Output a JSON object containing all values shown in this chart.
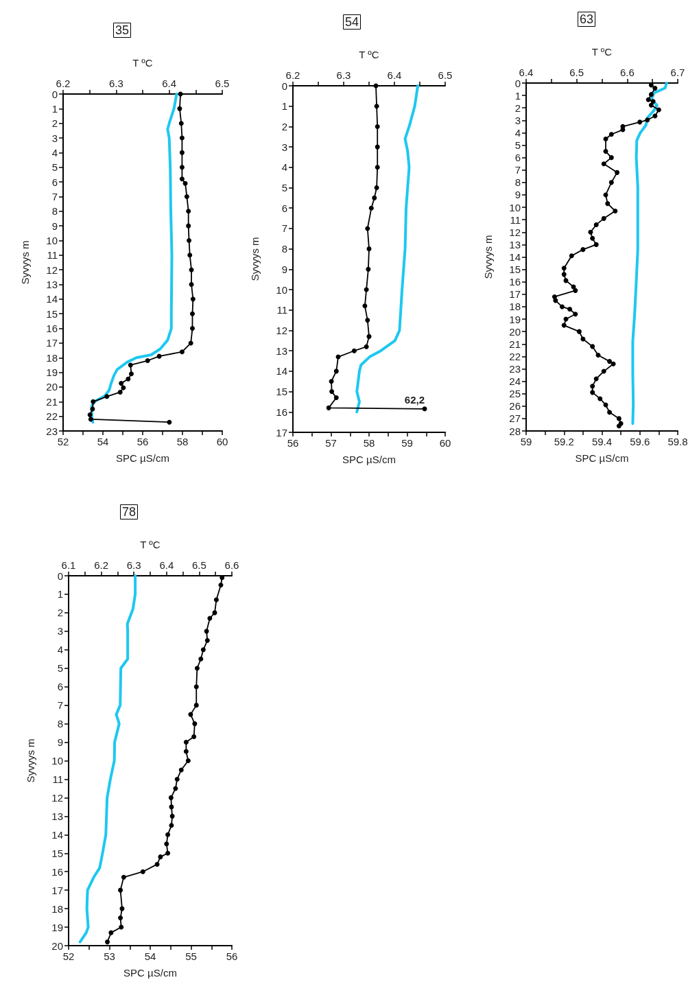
{
  "chart_data": [
    {
      "type": "line",
      "title": "35",
      "xlabel": "SPC µS/cm",
      "x2label": "T ºC",
      "ylabel": "Syvyys m",
      "ylim": [
        23,
        0
      ],
      "yticks": [
        0,
        1,
        2,
        3,
        4,
        5,
        6,
        7,
        8,
        9,
        10,
        11,
        12,
        13,
        14,
        15,
        16,
        17,
        18,
        19,
        20,
        21,
        22,
        23
      ],
      "xlim": [
        52,
        60
      ],
      "xticks": [
        52,
        {
          "value": 53,
          "label": null
        },
        54,
        {
          "value": 55,
          "label": null
        },
        56,
        {
          "value": 57,
          "label": null
        },
        58,
        {
          "value": 59,
          "label": null
        },
        60
      ],
      "x2lim": [
        6.2,
        6.5
      ],
      "x2ticks": [
        6.2,
        {
          "value": 6.25,
          "label": null
        },
        6.3,
        {
          "value": 6.35,
          "label": null
        },
        6.4,
        {
          "value": 6.45,
          "label": null
        },
        6.5
      ],
      "series": [
        {
          "color": "#1ec8f0",
          "axis": "x2",
          "marker": "none",
          "x": [
            6.414,
            6.409,
            6.4,
            6.397,
            6.4,
            6.402,
            6.403,
            6.405,
            6.404,
            6.404,
            6.397,
            6.383,
            6.366,
            6.338,
            6.321,
            6.302,
            6.296,
            6.29,
            6.287,
            6.279,
            6.259,
            6.254,
            6.254,
            6.256
          ],
          "values": [
            0,
            1,
            2,
            2.4,
            3,
            5,
            8,
            11,
            15,
            16,
            16.8,
            17.4,
            17.8,
            18,
            18.3,
            18.8,
            19.2,
            19.8,
            20.2,
            20.6,
            21,
            21.3,
            22,
            22.4
          ]
        },
        {
          "color": "#000000",
          "marker": "circle",
          "x": [
            57.9,
            57.86,
            57.94,
            57.98,
            57.98,
            57.98,
            57.98,
            58.14,
            58.22,
            58.3,
            58.3,
            58.33,
            58.37,
            58.45,
            58.45,
            58.53,
            58.5,
            58.5,
            58.42,
            57.98,
            56.83,
            56.25,
            55.39,
            55.43,
            55.27,
            54.92,
            55.03,
            54.87,
            54.2,
            53.51,
            53.48,
            53.35,
            53.39,
            57.34
          ],
          "values": [
            0,
            1,
            2,
            3,
            4,
            5,
            5.8,
            6.1,
            7,
            8,
            9,
            10,
            11,
            12,
            13,
            14,
            15,
            16,
            17,
            17.6,
            17.9,
            18.2,
            18.5,
            19.1,
            19.45,
            19.75,
            20.05,
            20.35,
            20.65,
            21,
            21.5,
            21.9,
            22.2,
            22.4
          ]
        }
      ]
    },
    {
      "type": "line",
      "title": "54",
      "xlabel": "SPC µS/cm",
      "x2label": "T ºC",
      "ylabel": "Syvyys m",
      "ylim": [
        17,
        0
      ],
      "yticks": [
        0,
        1,
        2,
        3,
        4,
        5,
        6,
        7,
        8,
        9,
        10,
        11,
        12,
        13,
        14,
        15,
        16,
        17
      ],
      "xlim": [
        56,
        60
      ],
      "xticks": [
        56,
        {
          "value": 56.5,
          "label": null
        },
        57,
        {
          "value": 57.5,
          "label": null
        },
        58,
        {
          "value": 58.5,
          "label": null
        },
        59,
        {
          "value": 59.5,
          "label": null
        },
        60
      ],
      "x2lim": [
        6.2,
        6.5
      ],
      "x2ticks": [
        6.2,
        {
          "value": 6.25,
          "label": null
        },
        6.3,
        {
          "value": 6.35,
          "label": null
        },
        6.4,
        {
          "value": 6.45,
          "label": null
        },
        6.5
      ],
      "annotations": [
        {
          "text": "62,2",
          "x": 59.46,
          "y": 15.85
        }
      ],
      "series": [
        {
          "color": "#1ec8f0",
          "axis": "x2",
          "marker": "none",
          "x": [
            6.446,
            6.44,
            6.429,
            6.421,
            6.426,
            6.429,
            6.423,
            6.421,
            6.415,
            6.41,
            6.401,
            6.373,
            6.351,
            6.334,
            6.331,
            6.326,
            6.331,
            6.326
          ],
          "values": [
            0,
            1,
            2,
            2.6,
            3.2,
            4,
            6,
            8,
            10,
            12,
            12.5,
            13,
            13.3,
            13.7,
            14,
            15,
            15.5,
            16
          ]
        },
        {
          "color": "#000000",
          "marker": "circle",
          "x": [
            58.18,
            58.2,
            58.22,
            58.22,
            58.22,
            58.2,
            58.14,
            58.06,
            57.96,
            58.0,
            57.98,
            57.93,
            57.89,
            57.96,
            58.0,
            57.93,
            57.61,
            57.19,
            57.14,
            57.01,
            57.02,
            57.14,
            56.94,
            59.46
          ],
          "values": [
            0,
            1,
            2,
            3,
            4,
            5,
            5.5,
            6,
            7,
            8,
            9,
            10,
            10.8,
            11.5,
            12.3,
            12.8,
            13,
            13.3,
            14,
            14.5,
            15,
            15.3,
            15.8,
            15.85
          ]
        }
      ]
    },
    {
      "type": "line",
      "title": "63",
      "xlabel": "SPC µS/cm",
      "x2label": "T ºC",
      "ylabel": "Syvyys m",
      "ylim": [
        28,
        0
      ],
      "yticks": [
        0,
        1,
        2,
        3,
        4,
        5,
        6,
        7,
        8,
        9,
        10,
        11,
        12,
        13,
        14,
        15,
        16,
        17,
        18,
        19,
        20,
        21,
        22,
        23,
        24,
        25,
        26,
        27,
        28
      ],
      "xlim": [
        59,
        59.8
      ],
      "xticks": [
        59,
        {
          "value": 59.1,
          "label": null
        },
        59.2,
        {
          "value": 59.3,
          "label": null
        },
        59.4,
        {
          "value": 59.5,
          "label": null
        },
        59.6,
        {
          "value": 59.7,
          "label": null
        },
        59.8
      ],
      "x2lim": [
        6.4,
        6.7
      ],
      "x2ticks": [
        6.4,
        {
          "value": 6.45,
          "label": null
        },
        6.5,
        {
          "value": 6.55,
          "label": null
        },
        6.6,
        {
          "value": 6.65,
          "label": null
        },
        6.7
      ],
      "series": [
        {
          "color": "#1ec8f0",
          "axis": "x2",
          "marker": "none",
          "x": [
            6.678,
            6.675,
            6.653,
            6.648,
            6.659,
            6.653,
            6.64,
            6.637,
            6.626,
            6.619,
            6.618,
            6.621,
            6.621,
            6.618,
            6.615,
            6.611,
            6.611,
            6.612,
            6.611
          ],
          "values": [
            0,
            0.4,
            0.8,
            1.3,
            1.8,
            2.2,
            2.8,
            3.4,
            4,
            4.6,
            6,
            8.4,
            13.4,
            15.9,
            18.4,
            20.8,
            23.3,
            25.8,
            27.4
          ]
        },
        {
          "color": "#000000",
          "marker": "circle",
          "x": [
            59.66,
            59.68,
            59.66,
            59.645,
            59.67,
            59.66,
            59.7,
            59.68,
            59.64,
            59.6,
            59.51,
            59.51,
            59.45,
            59.42,
            59.42,
            59.45,
            59.41,
            59.48,
            59.45,
            59.42,
            59.43,
            59.47,
            59.41,
            59.37,
            59.34,
            59.35,
            59.37,
            59.3,
            59.24,
            59.2,
            59.2,
            59.21,
            59.25,
            59.26,
            59.15,
            59.155,
            59.19,
            59.23,
            59.26,
            59.21,
            59.2,
            59.28,
            59.3,
            59.35,
            59.38,
            59.44,
            59.46,
            59.41,
            59.37,
            59.35,
            59.35,
            59.39,
            59.42,
            59.44,
            59.49,
            59.5,
            59.49
          ],
          "values": [
            0.17,
            0.42,
            0.92,
            1.34,
            1.48,
            1.78,
            2.15,
            2.65,
            2.97,
            3.14,
            3.5,
            3.76,
            4.13,
            4.5,
            5.5,
            6,
            6.5,
            7.2,
            8,
            9,
            9.7,
            10.3,
            10.9,
            11.4,
            12,
            12.5,
            13,
            13.4,
            13.9,
            14.9,
            15.4,
            15.9,
            16.4,
            16.7,
            17.2,
            17.5,
            18,
            18.2,
            18.6,
            19,
            19.5,
            20,
            20.6,
            21.2,
            21.9,
            22.4,
            22.6,
            23.2,
            23.8,
            24.4,
            24.9,
            25.4,
            25.9,
            26.5,
            27,
            27.4,
            27.6
          ]
        }
      ]
    },
    {
      "type": "line",
      "title": "78",
      "xlabel": "SPC µS/cm",
      "x2label": "T ºC",
      "ylabel": "Syvyys m",
      "ylim": [
        20,
        0
      ],
      "yticks": [
        0,
        1,
        2,
        3,
        4,
        5,
        6,
        7,
        8,
        9,
        10,
        11,
        12,
        13,
        14,
        15,
        16,
        17,
        18,
        19,
        20
      ],
      "xlim": [
        52,
        56
      ],
      "xticks": [
        52,
        {
          "value": 52.5,
          "label": null
        },
        53,
        {
          "value": 53.5,
          "label": null
        },
        54,
        {
          "value": 54.5,
          "label": null
        },
        55,
        {
          "value": 55.5,
          "label": null
        },
        56
      ],
      "x2lim": [
        6.1,
        6.6
      ],
      "x2ticks": [
        6.1,
        {
          "value": 6.15,
          "label": null
        },
        6.2,
        {
          "value": 6.25,
          "label": null
        },
        6.3,
        {
          "value": 6.35,
          "label": null
        },
        6.4,
        {
          "value": 6.45,
          "label": null
        },
        6.5,
        {
          "value": 6.55,
          "label": null
        },
        6.6
      ],
      "series": [
        {
          "color": "#1ec8f0",
          "axis": "x2",
          "marker": "none",
          "x": [
            6.304,
            6.304,
            6.297,
            6.28,
            6.281,
            6.281,
            6.26,
            6.258,
            6.246,
            6.255,
            6.241,
            6.24,
            6.228,
            6.218,
            6.214,
            6.204,
            6.195,
            6.177,
            6.158,
            6.156,
            6.16,
            6.154,
            6.135
          ],
          "values": [
            0,
            1,
            1.8,
            2.6,
            3,
            4.5,
            5,
            7,
            7.5,
            8,
            9,
            10,
            11,
            12,
            14,
            15,
            15.8,
            16.3,
            17,
            18,
            19,
            19.3,
            19.8
          ]
        },
        {
          "color": "#000000",
          "marker": "circle",
          "x": [
            55.76,
            55.73,
            55.62,
            55.58,
            55.46,
            55.38,
            55.4,
            55.3,
            55.24,
            55.15,
            55.13,
            55.13,
            54.99,
            55.09,
            55.07,
            54.88,
            54.88,
            54.93,
            54.76,
            54.66,
            54.62,
            54.51,
            54.52,
            54.54,
            54.52,
            54.43,
            54.4,
            54.43,
            54.25,
            54.17,
            53.82,
            53.35,
            53.27,
            53.31,
            53.27,
            53.29,
            53.04,
            52.95
          ],
          "values": [
            0.1,
            0.5,
            1.3,
            2,
            2.3,
            3,
            3.5,
            4,
            4.5,
            5,
            6,
            7,
            7.5,
            8,
            8.7,
            9,
            9.5,
            10,
            10.5,
            11,
            11.5,
            12,
            12.5,
            13,
            13.5,
            14,
            14.5,
            15,
            15.2,
            15.6,
            16,
            16.3,
            17,
            18,
            18.5,
            19,
            19.3,
            19.8
          ]
        }
      ]
    }
  ]
}
